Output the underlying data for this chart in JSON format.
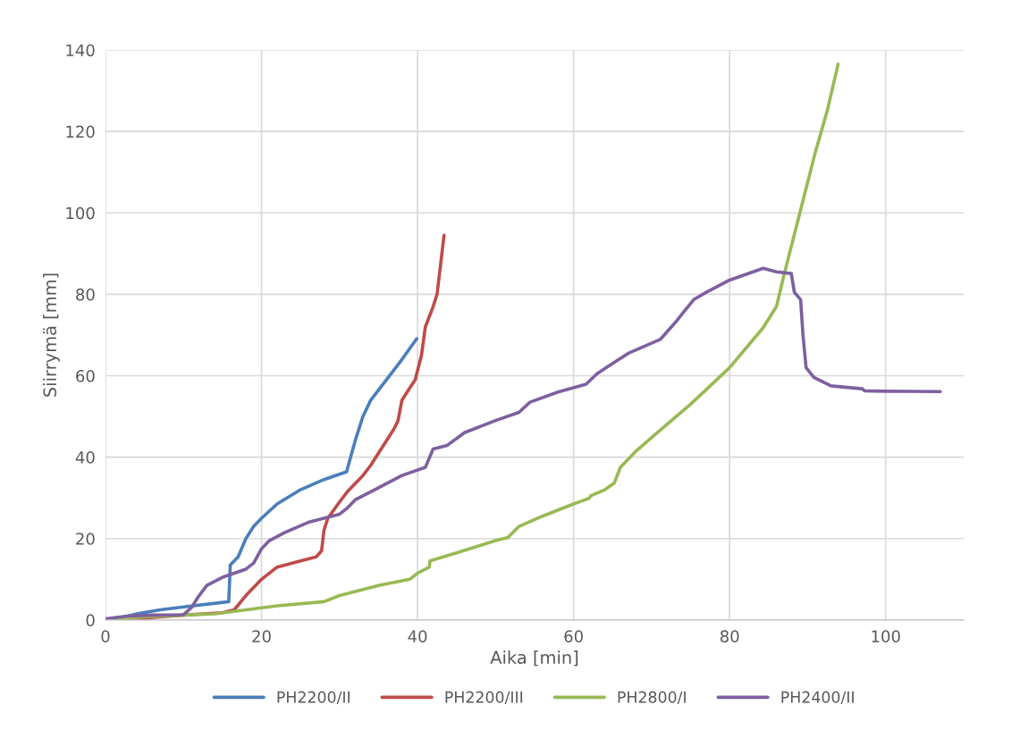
{
  "chart_data": {
    "type": "line",
    "xlabel": "Aika [min]",
    "ylabel": "Siirrymä [mm]",
    "xlim": [
      0,
      110
    ],
    "xticks": [
      0,
      20,
      40,
      60,
      80,
      100
    ],
    "ylim": [
      0,
      140
    ],
    "yticks": [
      0,
      20,
      40,
      60,
      80,
      100,
      120,
      140
    ],
    "grid": true,
    "legend": "bottom",
    "marker": "none",
    "line_style": "solid",
    "series": [
      {
        "name": "PH2200/II",
        "color": "#4a7ebb",
        "x": [
          0,
          2,
          4,
          7,
          10,
          15.8,
          16,
          16.5,
          17,
          18,
          19,
          20,
          22,
          25,
          28,
          30.9,
          32,
          33,
          34,
          36,
          38,
          39.9
        ],
        "values": [
          0,
          0.5,
          1.5,
          2.5,
          3.2,
          4.5,
          13.5,
          14.5,
          15.5,
          20,
          23,
          25,
          28.5,
          32,
          34.5,
          36.4,
          44,
          50,
          54,
          59,
          64,
          69.1
        ]
      },
      {
        "name": "PH2200/III",
        "color": "#be4b48",
        "x": [
          0,
          5,
          10,
          15,
          16.5,
          18,
          20,
          22,
          25,
          27,
          27.7,
          28,
          28.5,
          30,
          31,
          32,
          33,
          34,
          35,
          36,
          37,
          37.5,
          38,
          39,
          39.7,
          40.5,
          41,
          42,
          42.5,
          43.4
        ],
        "values": [
          0,
          0.5,
          1.2,
          1.8,
          2.5,
          6,
          10,
          13,
          14.5,
          15.5,
          17,
          22,
          25,
          29,
          31.5,
          33.5,
          35.5,
          38,
          41,
          44,
          47,
          49,
          54,
          57,
          59,
          65,
          72,
          77,
          80,
          94.5
        ]
      },
      {
        "name": "PH2800/I",
        "color": "#98b954",
        "x": [
          0,
          5,
          10,
          14,
          18,
          22,
          28,
          30,
          35,
          39,
          40,
          41.5,
          41.6,
          45,
          50,
          51.6,
          53,
          56,
          60,
          62,
          62.2,
          64,
          65.2,
          66,
          68,
          71,
          75,
          80,
          84.3,
          86,
          87,
          89,
          91,
          92.5,
          93.9
        ],
        "values": [
          0,
          0.8,
          1.2,
          1.5,
          2.5,
          3.5,
          4.5,
          6,
          8.5,
          10,
          11.5,
          13,
          14.5,
          16.5,
          19.5,
          20.3,
          23,
          25.5,
          28.5,
          29.9,
          30.5,
          32,
          33.6,
          37.5,
          41.5,
          46.5,
          53,
          62,
          71.8,
          77,
          85,
          100,
          115,
          125,
          136.5
        ]
      },
      {
        "name": "PH2400/II",
        "color": "#7d60a0",
        "x": [
          0,
          3,
          6,
          10,
          11,
          12,
          13,
          15,
          18,
          19,
          20,
          21,
          23,
          26,
          28,
          30,
          31,
          32,
          35,
          38,
          41,
          42,
          43.8,
          46,
          50,
          53,
          54.4,
          58,
          61.6,
          63,
          65,
          67,
          71.1,
          73,
          75.4,
          77,
          80,
          84.3,
          86,
          87.9,
          88.3,
          89.1,
          89.4,
          89.8,
          90.8,
          93,
          97,
          97.3,
          100,
          107
        ],
        "values": [
          0.3,
          1,
          1.2,
          1.3,
          3,
          6,
          8.5,
          10.5,
          12.5,
          14,
          17.5,
          19.5,
          21.5,
          24,
          25,
          26,
          27.5,
          29.5,
          32.5,
          35.5,
          37.5,
          42,
          42.9,
          46,
          49,
          51,
          53.5,
          56,
          57.9,
          60.5,
          63,
          65.5,
          68.9,
          73,
          78.7,
          80.5,
          83.5,
          86.4,
          85.5,
          85.1,
          80.5,
          78.7,
          70,
          62,
          59.6,
          57.5,
          56.8,
          56.3,
          56.2,
          56.1
        ]
      }
    ]
  }
}
